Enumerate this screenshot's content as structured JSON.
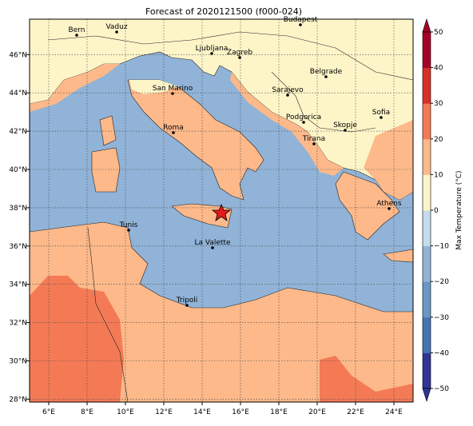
{
  "title": "Forecast of 2020121500 (f000-024)",
  "map": {
    "lon_lim": [
      5,
      25
    ],
    "lat_lim": [
      27.85,
      47.85
    ],
    "lon_ticks": [
      {
        "value": 6,
        "label": "6°E"
      },
      {
        "value": 8,
        "label": "8°E"
      },
      {
        "value": 10,
        "label": "10°E"
      },
      {
        "value": 12,
        "label": "12°E"
      },
      {
        "value": 14,
        "label": "14°E"
      },
      {
        "value": 16,
        "label": "16°E"
      },
      {
        "value": 18,
        "label": "18°E"
      },
      {
        "value": 20,
        "label": "20°E"
      },
      {
        "value": 22,
        "label": "22°E"
      },
      {
        "value": 24,
        "label": "24°E"
      }
    ],
    "lat_ticks": [
      {
        "value": 28,
        "label": "28°N"
      },
      {
        "value": 30,
        "label": "30°N"
      },
      {
        "value": 32,
        "label": "32°N"
      },
      {
        "value": 34,
        "label": "34°N"
      },
      {
        "value": 36,
        "label": "36°N"
      },
      {
        "value": 38,
        "label": "38°N"
      },
      {
        "value": 40,
        "label": "40°N"
      },
      {
        "value": 42,
        "label": "42°N"
      },
      {
        "value": 44,
        "label": "44°N"
      },
      {
        "value": 46,
        "label": "46°N"
      }
    ],
    "cities": [
      "Bern",
      "Vaduz",
      "Budapest",
      "Ljubljana",
      "Zagreb",
      "Belgrade",
      "San Marino",
      "Sarajevo",
      "Sofia",
      "Podgorica",
      "Skopje",
      "Roma",
      "Tirana",
      "Athens",
      "Tunis",
      "La Valette",
      "Tripoli"
    ]
  },
  "colorbar": {
    "label": "Max Temperature (°C)",
    "lim": [
      -50,
      50
    ],
    "ticks": [
      {
        "value": -50,
        "label": "−50"
      },
      {
        "value": -40,
        "label": "−40"
      },
      {
        "value": -30,
        "label": "−30"
      },
      {
        "value": -20,
        "label": "−20"
      },
      {
        "value": -10,
        "label": "−10"
      },
      0,
      10,
      20,
      30,
      40,
      50
    ],
    "colors": [
      "#313695",
      "#4575b4",
      "#6b97c6",
      "#91b3d7",
      "#c4dcec",
      "#fdf5c8",
      "#fdb98a",
      "#f47a55",
      "#d73027",
      "#a50026"
    ]
  }
}
